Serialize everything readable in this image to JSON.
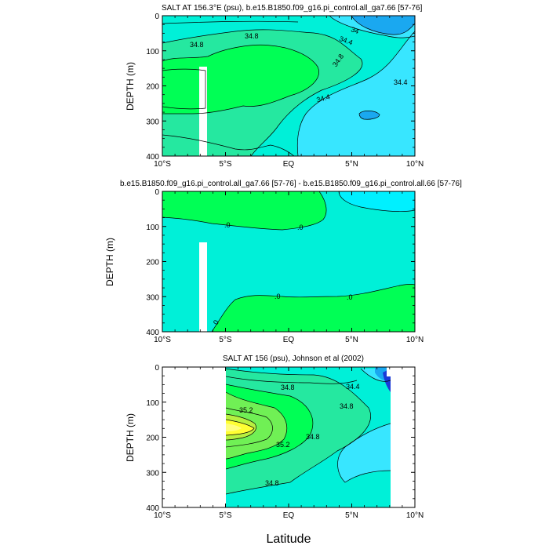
{
  "colors": {
    "c33_8": "#1aa8f0",
    "c34_2": "#38e6ff",
    "c34_6": "#00f0d8",
    "c35_0": "#25e8a0",
    "c35_2": "#00ff55",
    "c35_4": "#70f055",
    "c35_6": "#b8f040",
    "c35_8": "#ffff33",
    "c35_9": "#ffff80",
    "deep_blue": "#1a3ad8",
    "diff_pos": "#00ff55",
    "diff_neg": "#00f0d8",
    "diff_cyan": "#00f0ff"
  },
  "xlabel": "Latitude",
  "chart_data": [
    {
      "type": "heatmap",
      "title": "SALT AT 156.3°E (psu), b.e15.B1850.f09_g16.pi_control.all_ga7.66 [57-76]",
      "ylabel": "DEPTH (m)",
      "xlim": [
        -10,
        10
      ],
      "ylim": [
        400,
        0
      ],
      "xticks": [
        "10°S",
        "5°S",
        "EQ",
        "5°N",
        "10°N"
      ],
      "yticks": [
        "0",
        "100",
        "200",
        "300",
        "400"
      ],
      "contour_labels": [
        "34",
        "34.8",
        "34.4",
        "34.8",
        "34.4",
        "34.8",
        "34.4"
      ],
      "missing_band": {
        "lat": [
          -7.2,
          -6.7
        ],
        "depth": [
          145,
          400
        ]
      }
    },
    {
      "type": "heatmap",
      "title": "b.e15.B1850.f09_g16.pi_control.all_ga7.66 [57-76] - b.e15.B1850.f09_g16.pi_control.all.66 [57-76]",
      "ylabel": "DEPTH (m)",
      "xlim": [
        -10,
        10
      ],
      "ylim": [
        400,
        0
      ],
      "xticks": [
        "10°S",
        "5°S",
        "EQ",
        "5°N",
        "10°N"
      ],
      "yticks": [
        "0",
        "100",
        "200",
        "300",
        "400"
      ],
      "contour_labels": [
        ".0",
        ".0",
        ".0",
        ".0",
        "0"
      ],
      "missing_band": {
        "lat": [
          -7.2,
          -6.7
        ],
        "depth": [
          145,
          400
        ]
      }
    },
    {
      "type": "heatmap",
      "title": "SALT AT 156 (psu), Johnson et al (2002)",
      "ylabel": "DEPTH (m)",
      "xlim": [
        -10,
        10
      ],
      "ylim": [
        400,
        0
      ],
      "data_lat_range": [
        -5,
        8
      ],
      "xticks": [
        "10°S",
        "5°S",
        "EQ",
        "5°N",
        "10°N"
      ],
      "yticks": [
        "0",
        "100",
        "200",
        "300",
        "400"
      ],
      "contour_labels": [
        "34.4",
        "34.8",
        "35.2",
        "34.8",
        "35.2",
        "34.8",
        "34.8"
      ]
    }
  ]
}
